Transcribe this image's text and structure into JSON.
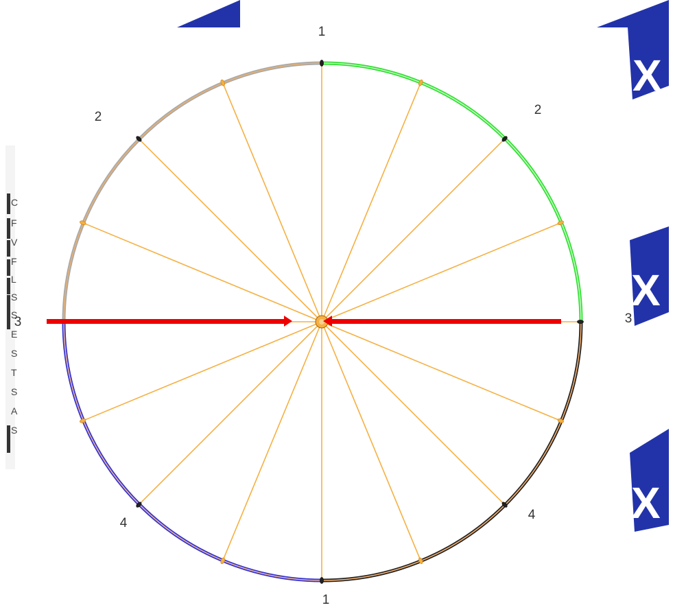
{
  "diagram": {
    "ring_labels": {
      "top": "1",
      "bottom": "1",
      "upper_left": "2",
      "upper_right": "2",
      "left": "3",
      "right": "3",
      "lower_left": "4",
      "lower_right": "4"
    },
    "spoke_count": 16,
    "arc_segments": [
      {
        "name": "upper-left-arc",
        "color": "#a9a9a9",
        "inner": "#e8b070"
      },
      {
        "name": "upper-right-arc",
        "color": "#33dd33",
        "inner": "#aaffaa"
      },
      {
        "name": "lower-right-arc",
        "color": "#222222",
        "inner": "#f5b070"
      },
      {
        "name": "lower-left-arc",
        "color": "#3333cc",
        "inner": "#e8b0a0"
      }
    ],
    "arrows": [
      {
        "name": "left-arrow",
        "direction": "right",
        "color": "#ee0000"
      },
      {
        "name": "right-arrow",
        "direction": "left",
        "color": "#ee0000"
      }
    ],
    "spoke_color": "#f5b042"
  },
  "background_fragments": {
    "left_letters": [
      "C",
      "F",
      "V",
      "F",
      "L",
      "S",
      "S",
      "E",
      "S",
      "T",
      "S",
      "A",
      "S"
    ],
    "x_tiles": [
      "X",
      "X",
      "X"
    ],
    "tile_color": "#2233aa"
  }
}
